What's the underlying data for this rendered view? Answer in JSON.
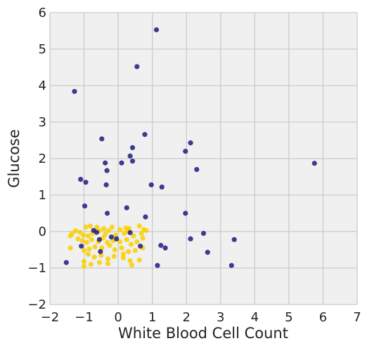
{
  "chart_data": {
    "type": "scatter",
    "title": "",
    "xlabel": "White Blood Cell Count",
    "ylabel": "Glucose",
    "xlim": [
      -2,
      7
    ],
    "ylim": [
      -2,
      6
    ],
    "xticks": [
      -2,
      -1,
      0,
      1,
      2,
      3,
      4,
      5,
      6,
      7
    ],
    "yticks": [
      -2,
      -1,
      0,
      1,
      2,
      3,
      4,
      5,
      6
    ],
    "xtick_labels": [
      "−2",
      "−1",
      "0",
      "1",
      "2",
      "3",
      "4",
      "5",
      "6",
      "7"
    ],
    "ytick_labels": [
      "−2",
      "−1",
      "0",
      "1",
      "2",
      "3",
      "4",
      "5",
      "6"
    ],
    "grid": true,
    "background": "#f0f0f0",
    "grid_color": "#cbcbcb",
    "series": [
      {
        "color": "#1f1a80",
        "points": [
          [
            1.12,
            5.53
          ],
          [
            0.55,
            4.52
          ],
          [
            -1.28,
            3.84
          ],
          [
            0.78,
            2.66
          ],
          [
            -0.48,
            2.54
          ],
          [
            2.12,
            2.43
          ],
          [
            0.42,
            2.3
          ],
          [
            1.97,
            2.2
          ],
          [
            0.35,
            2.07
          ],
          [
            0.42,
            1.93
          ],
          [
            -0.38,
            1.88
          ],
          [
            0.1,
            1.88
          ],
          [
            5.75,
            1.87
          ],
          [
            2.3,
            1.7
          ],
          [
            -0.33,
            1.67
          ],
          [
            -1.1,
            1.43
          ],
          [
            -0.95,
            1.35
          ],
          [
            -0.35,
            1.28
          ],
          [
            0.97,
            1.28
          ],
          [
            1.28,
            1.22
          ],
          [
            -0.98,
            0.7
          ],
          [
            0.25,
            0.65
          ],
          [
            -0.32,
            0.5
          ],
          [
            1.97,
            0.5
          ],
          [
            0.8,
            0.4
          ],
          [
            -0.72,
            0.03
          ],
          [
            -0.63,
            -0.02
          ],
          [
            0.35,
            -0.03
          ],
          [
            2.5,
            -0.05
          ],
          [
            -0.2,
            -0.15
          ],
          [
            -0.05,
            -0.2
          ],
          [
            -0.55,
            -0.22
          ],
          [
            2.12,
            -0.2
          ],
          [
            3.4,
            -0.22
          ],
          [
            1.25,
            -0.38
          ],
          [
            0.65,
            -0.4
          ],
          [
            -1.08,
            -0.4
          ],
          [
            1.38,
            -0.45
          ],
          [
            -0.52,
            -0.55
          ],
          [
            2.62,
            -0.57
          ],
          [
            -1.52,
            -0.85
          ],
          [
            1.15,
            -0.93
          ],
          [
            3.32,
            -0.93
          ]
        ]
      },
      {
        "color": "#f9d000",
        "points": [
          [
            -0.95,
            0.12
          ],
          [
            -0.82,
            0.15
          ],
          [
            -0.62,
            0.12
          ],
          [
            -0.42,
            0.08
          ],
          [
            -0.18,
            0.12
          ],
          [
            0.05,
            0.05
          ],
          [
            0.22,
            0.1
          ],
          [
            0.32,
            0.08
          ],
          [
            0.62,
            0.15
          ],
          [
            0.75,
            0.05
          ],
          [
            0.82,
            0.03
          ],
          [
            -1.35,
            -0.05
          ],
          [
            -1.25,
            0.02
          ],
          [
            -1.12,
            -0.02
          ],
          [
            -1.02,
            -0.1
          ],
          [
            -0.88,
            -0.12
          ],
          [
            -0.75,
            -0.05
          ],
          [
            -0.55,
            0.02
          ],
          [
            -0.38,
            -0.08
          ],
          [
            -0.28,
            0.02
          ],
          [
            -0.08,
            -0.1
          ],
          [
            0.18,
            -0.05
          ],
          [
            0.28,
            0.02
          ],
          [
            0.45,
            -0.12
          ],
          [
            0.68,
            -0.05
          ],
          [
            0.72,
            -0.18
          ],
          [
            -1.4,
            -0.12
          ],
          [
            -1.18,
            -0.2
          ],
          [
            -1.05,
            -0.25
          ],
          [
            -0.92,
            -0.3
          ],
          [
            -0.78,
            -0.22
          ],
          [
            -0.58,
            -0.28
          ],
          [
            -0.45,
            -0.18
          ],
          [
            -0.32,
            -0.3
          ],
          [
            -0.15,
            -0.25
          ],
          [
            0.05,
            -0.28
          ],
          [
            0.25,
            -0.22
          ],
          [
            0.38,
            -0.35
          ],
          [
            0.55,
            -0.28
          ],
          [
            -1.4,
            -0.45
          ],
          [
            -1.0,
            -0.52
          ],
          [
            -0.85,
            -0.48
          ],
          [
            -0.68,
            -0.42
          ],
          [
            -0.48,
            -0.45
          ],
          [
            -0.25,
            -0.38
          ],
          [
            -0.1,
            -0.5
          ],
          [
            0.1,
            -0.45
          ],
          [
            0.3,
            -0.55
          ],
          [
            0.5,
            -0.52
          ],
          [
            0.72,
            -0.45
          ],
          [
            -0.88,
            -0.62
          ],
          [
            -0.7,
            -0.7
          ],
          [
            -0.5,
            -0.65
          ],
          [
            -0.3,
            -0.75
          ],
          [
            -0.12,
            -0.68
          ],
          [
            0.15,
            -0.72
          ],
          [
            0.35,
            -0.8
          ],
          [
            0.62,
            -0.78
          ],
          [
            -1.0,
            -0.82
          ],
          [
            -0.8,
            -0.9
          ],
          [
            -0.55,
            -0.85
          ],
          [
            -0.3,
            -0.88
          ],
          [
            0.4,
            -0.92
          ],
          [
            -1.0,
            -0.95
          ],
          [
            0.15,
            -0.62
          ]
        ]
      }
    ]
  }
}
